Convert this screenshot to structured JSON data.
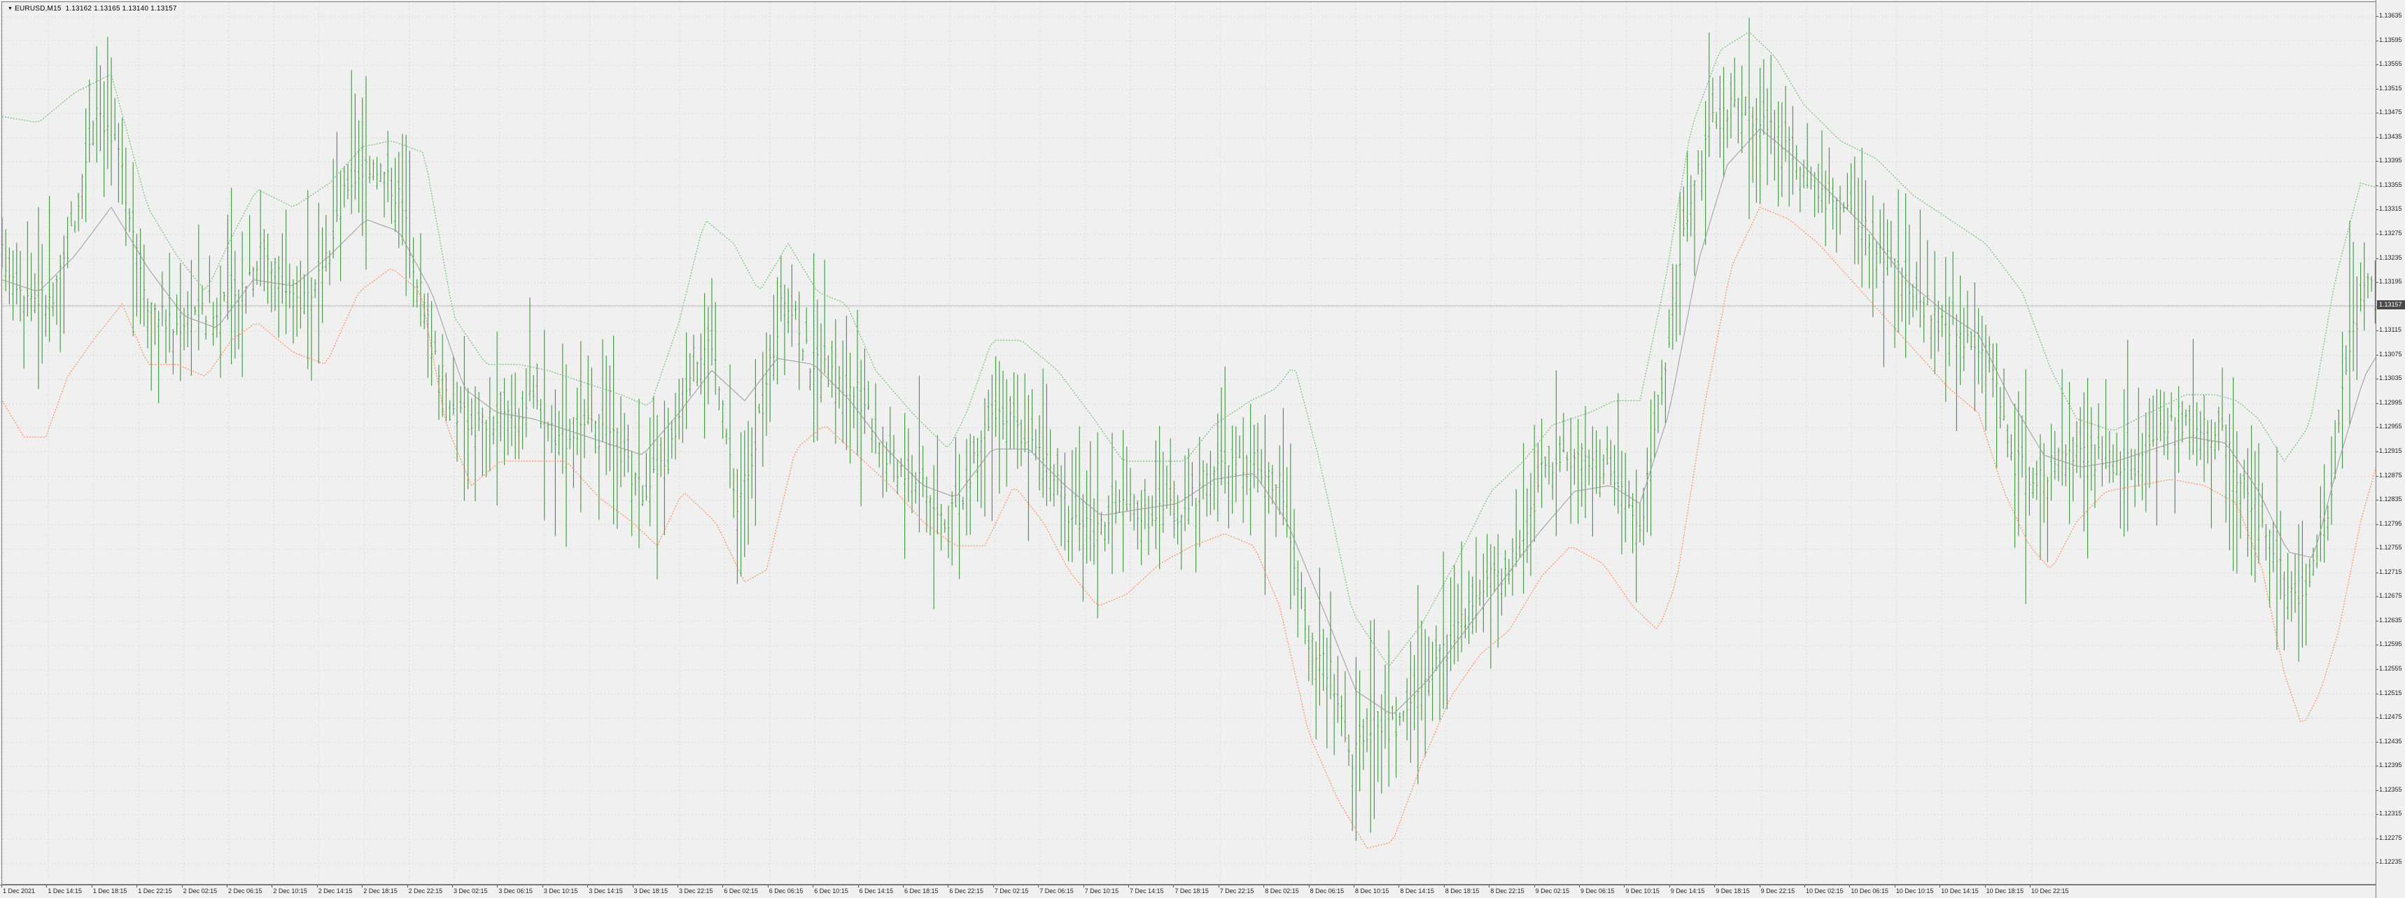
{
  "window": {
    "symbol_caption": "EURUSD,M15  1.13162 1.13165 1.13140 1.13157",
    "collapse_icon": "triangle-down-icon"
  },
  "colors": {
    "background": "#f0f0f0",
    "grid": "#d9d9d9",
    "bars": "#4c9a4c",
    "upper_band": "#6dbf6d",
    "middle_band": "#9a9a9a",
    "lower_band": "#ff8c5a",
    "current_price_line": "#bdbdbd",
    "current_price_label_bg": "#4a4a4a"
  },
  "price_axis": {
    "labels": [
      "1.13635",
      "1.13595",
      "1.13555",
      "1.13515",
      "1.13475",
      "1.13435",
      "1.13395",
      "1.13355",
      "1.13315",
      "1.13275",
      "1.13235",
      "1.13195",
      "1.13155",
      "1.13115",
      "1.13075",
      "1.13035",
      "1.12995",
      "1.12955",
      "1.12915",
      "1.12875",
      "1.12835",
      "1.12795",
      "1.12755",
      "1.12715",
      "1.12675",
      "1.12635",
      "1.12595",
      "1.12555",
      "1.12515",
      "1.12475",
      "1.12435",
      "1.12395",
      "1.12355",
      "1.12315",
      "1.12275",
      "1.12235"
    ],
    "current_price": "1.13157"
  },
  "time_axis": {
    "labels": [
      "1 Dec 2021",
      "1 Dec 14:15",
      "1 Dec 18:15",
      "1 Dec 22:15",
      "2 Dec 02:15",
      "2 Dec 06:15",
      "2 Dec 10:15",
      "2 Dec 14:15",
      "2 Dec 18:15",
      "2 Dec 22:15",
      "3 Dec 02:15",
      "3 Dec 06:15",
      "3 Dec 10:15",
      "3 Dec 14:15",
      "3 Dec 18:15",
      "3 Dec 22:15",
      "6 Dec 02:15",
      "6 Dec 06:15",
      "6 Dec 10:15",
      "6 Dec 14:15",
      "6 Dec 18:15",
      "6 Dec 22:15",
      "7 Dec 02:15",
      "7 Dec 06:15",
      "7 Dec 10:15",
      "7 Dec 14:15",
      "7 Dec 18:15",
      "7 Dec 22:15",
      "8 Dec 02:15",
      "8 Dec 06:15",
      "8 Dec 10:15",
      "8 Dec 14:15",
      "8 Dec 18:15",
      "8 Dec 22:15",
      "9 Dec 02:15",
      "9 Dec 06:15",
      "9 Dec 10:15",
      "9 Dec 14:15",
      "9 Dec 18:15",
      "9 Dec 22:15",
      "10 Dec 02:15",
      "10 Dec 06:15",
      "10 Dec 10:15",
      "10 Dec 14:15",
      "10 Dec 18:15",
      "10 Dec 22:15"
    ]
  },
  "chart_data": {
    "type": "ohlc",
    "symbol": "EURUSD",
    "timeframe": "M15",
    "ylim": [
      1.1221,
      1.1365
    ],
    "grid": true,
    "indicator": "bollinger-bands",
    "close_path": [
      [
        0,
        1.1324
      ],
      [
        14,
        1.1318
      ],
      [
        28,
        1.1316
      ],
      [
        40,
        1.133
      ],
      [
        52,
        1.135
      ],
      [
        66,
        1.1338
      ],
      [
        80,
        1.1317
      ],
      [
        94,
        1.1312
      ],
      [
        106,
        1.1315
      ],
      [
        118,
        1.1314
      ],
      [
        130,
        1.1318
      ],
      [
        144,
        1.1326
      ],
      [
        160,
        1.1316
      ],
      [
        176,
        1.132
      ],
      [
        190,
        1.1336
      ],
      [
        204,
        1.134
      ],
      [
        218,
        1.1334
      ],
      [
        234,
        1.1313
      ],
      [
        246,
        1.1299
      ],
      [
        260,
        1.1296
      ],
      [
        276,
        1.1297
      ],
      [
        292,
        1.13
      ],
      [
        306,
        1.1294
      ],
      [
        322,
        1.1295
      ],
      [
        338,
        1.1293
      ],
      [
        350,
        1.1285
      ],
      [
        366,
        1.129
      ],
      [
        378,
        1.1306
      ],
      [
        390,
        1.131
      ],
      [
        404,
        1.1282
      ],
      [
        416,
        1.1296
      ],
      [
        430,
        1.1318
      ],
      [
        444,
        1.1307
      ],
      [
        460,
        1.1303
      ],
      [
        474,
        1.13
      ],
      [
        488,
        1.129
      ],
      [
        504,
        1.1288
      ],
      [
        520,
        1.128
      ],
      [
        532,
        1.1287
      ],
      [
        544,
        1.13
      ],
      [
        558,
        1.1295
      ],
      [
        574,
        1.129
      ],
      [
        586,
        1.1282
      ],
      [
        600,
        1.1278
      ],
      [
        616,
        1.1283
      ],
      [
        632,
        1.1281
      ],
      [
        650,
        1.1282
      ],
      [
        664,
        1.1288
      ],
      [
        680,
        1.129
      ],
      [
        692,
        1.1289
      ],
      [
        704,
        1.1285
      ],
      [
        716,
        1.1262
      ],
      [
        730,
        1.1255
      ],
      [
        742,
        1.124
      ],
      [
        754,
        1.1248
      ],
      [
        766,
        1.1245
      ],
      [
        778,
        1.1252
      ],
      [
        790,
        1.1258
      ],
      [
        802,
        1.1263
      ],
      [
        818,
        1.127
      ],
      [
        834,
        1.1275
      ],
      [
        846,
        1.1288
      ],
      [
        858,
        1.1291
      ],
      [
        872,
        1.1291
      ],
      [
        888,
        1.1286
      ],
      [
        900,
        1.1278
      ],
      [
        912,
        1.1303
      ],
      [
        926,
        1.1332
      ],
      [
        940,
        1.1346
      ],
      [
        954,
        1.1349
      ],
      [
        966,
        1.1346
      ],
      [
        980,
        1.1343
      ],
      [
        994,
        1.1336
      ],
      [
        1006,
        1.1332
      ],
      [
        1020,
        1.133
      ],
      [
        1034,
        1.1324
      ],
      [
        1048,
        1.1318
      ],
      [
        1062,
        1.1314
      ],
      [
        1076,
        1.1311
      ],
      [
        1090,
        1.131
      ],
      [
        1106,
        1.129
      ],
      [
        1118,
        1.1287
      ],
      [
        1132,
        1.129
      ],
      [
        1144,
        1.1291
      ],
      [
        1158,
        1.129
      ],
      [
        1170,
        1.1289
      ],
      [
        1182,
        1.1293
      ],
      [
        1194,
        1.1297
      ],
      [
        1206,
        1.1296
      ],
      [
        1218,
        1.1295
      ],
      [
        1230,
        1.1287
      ],
      [
        1242,
        1.128
      ],
      [
        1254,
        1.127
      ],
      [
        1266,
        1.1268
      ],
      [
        1278,
        1.128
      ],
      [
        1290,
        1.131
      ],
      [
        1300,
        1.132
      ],
      [
        1312,
        1.1318
      ],
      [
        1322,
        1.1316
      ]
    ],
    "upper_band_path": [
      [
        0,
        1.1347
      ],
      [
        20,
        1.1346
      ],
      [
        40,
        1.1351
      ],
      [
        60,
        1.1354
      ],
      [
        80,
        1.1332
      ],
      [
        96,
        1.1324
      ],
      [
        112,
        1.1318
      ],
      [
        126,
        1.1327
      ],
      [
        140,
        1.1335
      ],
      [
        160,
        1.1332
      ],
      [
        180,
        1.1336
      ],
      [
        198,
        1.1342
      ],
      [
        214,
        1.1343
      ],
      [
        232,
        1.1341
      ],
      [
        248,
        1.1314
      ],
      [
        266,
        1.1306
      ],
      [
        284,
        1.1306
      ],
      [
        300,
        1.1305
      ],
      [
        320,
        1.1303
      ],
      [
        340,
        1.1301
      ],
      [
        356,
        1.1299
      ],
      [
        372,
        1.1313
      ],
      [
        386,
        1.133
      ],
      [
        402,
        1.1326
      ],
      [
        416,
        1.1318
      ],
      [
        432,
        1.1326
      ],
      [
        448,
        1.1318
      ],
      [
        464,
        1.1316
      ],
      [
        480,
        1.1305
      ],
      [
        500,
        1.1298
      ],
      [
        520,
        1.1292
      ],
      [
        530,
        1.1298
      ],
      [
        544,
        1.131
      ],
      [
        560,
        1.131
      ],
      [
        580,
        1.1305
      ],
      [
        600,
        1.1297
      ],
      [
        616,
        1.129
      ],
      [
        634,
        1.129
      ],
      [
        650,
        1.129
      ],
      [
        666,
        1.1296
      ],
      [
        686,
        1.13
      ],
      [
        700,
        1.1302
      ],
      [
        710,
        1.1306
      ],
      [
        724,
        1.129
      ],
      [
        742,
        1.1265
      ],
      [
        762,
        1.1256
      ],
      [
        780,
        1.1263
      ],
      [
        800,
        1.1274
      ],
      [
        818,
        1.1285
      ],
      [
        836,
        1.129
      ],
      [
        852,
        1.1296
      ],
      [
        872,
        1.1298
      ],
      [
        886,
        1.13
      ],
      [
        900,
        1.13
      ],
      [
        914,
        1.132
      ],
      [
        928,
        1.1345
      ],
      [
        944,
        1.1358
      ],
      [
        960,
        1.1361
      ],
      [
        974,
        1.1357
      ],
      [
        990,
        1.1349
      ],
      [
        1010,
        1.1343
      ],
      [
        1030,
        1.134
      ],
      [
        1050,
        1.1334
      ],
      [
        1070,
        1.133
      ],
      [
        1090,
        1.1326
      ],
      [
        1110,
        1.1318
      ],
      [
        1126,
        1.1305
      ],
      [
        1140,
        1.1297
      ],
      [
        1160,
        1.1295
      ],
      [
        1180,
        1.1298
      ],
      [
        1200,
        1.1301
      ],
      [
        1216,
        1.1301
      ],
      [
        1228,
        1.13
      ],
      [
        1240,
        1.1297
      ],
      [
        1254,
        1.129
      ],
      [
        1268,
        1.1296
      ],
      [
        1282,
        1.132
      ],
      [
        1296,
        1.1336
      ],
      [
        1308,
        1.1335
      ],
      [
        1318,
        1.1326
      ],
      [
        1326,
        1.1321
      ]
    ],
    "middle_band_path": [
      [
        0,
        1.132
      ],
      [
        20,
        1.1318
      ],
      [
        40,
        1.1324
      ],
      [
        60,
        1.1332
      ],
      [
        80,
        1.1322
      ],
      [
        100,
        1.1314
      ],
      [
        118,
        1.1312
      ],
      [
        138,
        1.132
      ],
      [
        160,
        1.1319
      ],
      [
        180,
        1.1324
      ],
      [
        200,
        1.133
      ],
      [
        218,
        1.1328
      ],
      [
        236,
        1.1318
      ],
      [
        254,
        1.1302
      ],
      [
        272,
        1.1298
      ],
      [
        292,
        1.1297
      ],
      [
        312,
        1.1295
      ],
      [
        332,
        1.1293
      ],
      [
        352,
        1.1291
      ],
      [
        372,
        1.1298
      ],
      [
        390,
        1.1305
      ],
      [
        408,
        1.13
      ],
      [
        426,
        1.1307
      ],
      [
        446,
        1.1306
      ],
      [
        466,
        1.13
      ],
      [
        486,
        1.1292
      ],
      [
        506,
        1.1286
      ],
      [
        524,
        1.1284
      ],
      [
        544,
        1.1292
      ],
      [
        564,
        1.1292
      ],
      [
        584,
        1.1286
      ],
      [
        604,
        1.1281
      ],
      [
        624,
        1.1282
      ],
      [
        646,
        1.1283
      ],
      [
        666,
        1.1287
      ],
      [
        688,
        1.1288
      ],
      [
        706,
        1.128
      ],
      [
        724,
        1.1267
      ],
      [
        744,
        1.1252
      ],
      [
        764,
        1.1248
      ],
      [
        784,
        1.1254
      ],
      [
        804,
        1.1262
      ],
      [
        824,
        1.127
      ],
      [
        844,
        1.1278
      ],
      [
        864,
        1.1285
      ],
      [
        884,
        1.1286
      ],
      [
        900,
        1.1283
      ],
      [
        916,
        1.1298
      ],
      [
        932,
        1.1323
      ],
      [
        948,
        1.1339
      ],
      [
        966,
        1.1345
      ],
      [
        986,
        1.134
      ],
      [
        1006,
        1.1334
      ],
      [
        1026,
        1.1328
      ],
      [
        1046,
        1.132
      ],
      [
        1066,
        1.1315
      ],
      [
        1086,
        1.1311
      ],
      [
        1104,
        1.13
      ],
      [
        1122,
        1.1291
      ],
      [
        1142,
        1.1289
      ],
      [
        1162,
        1.129
      ],
      [
        1182,
        1.1292
      ],
      [
        1202,
        1.1294
      ],
      [
        1222,
        1.1293
      ],
      [
        1240,
        1.1285
      ],
      [
        1256,
        1.1275
      ],
      [
        1270,
        1.1274
      ],
      [
        1284,
        1.129
      ],
      [
        1298,
        1.1304
      ],
      [
        1312,
        1.1311
      ],
      [
        1326,
        1.1313
      ]
    ],
    "lower_band_path": [
      [
        0,
        1.13
      ],
      [
        12,
        1.1294
      ],
      [
        24,
        1.1294
      ],
      [
        36,
        1.1304
      ],
      [
        50,
        1.131
      ],
      [
        66,
        1.1316
      ],
      [
        80,
        1.1306
      ],
      [
        96,
        1.1306
      ],
      [
        112,
        1.1304
      ],
      [
        126,
        1.131
      ],
      [
        140,
        1.1313
      ],
      [
        160,
        1.1308
      ],
      [
        178,
        1.1306
      ],
      [
        196,
        1.1318
      ],
      [
        214,
        1.1322
      ],
      [
        230,
        1.1318
      ],
      [
        244,
        1.1296
      ],
      [
        258,
        1.1286
      ],
      [
        274,
        1.129
      ],
      [
        292,
        1.129
      ],
      [
        310,
        1.129
      ],
      [
        328,
        1.1284
      ],
      [
        346,
        1.128
      ],
      [
        360,
        1.1276
      ],
      [
        374,
        1.1285
      ],
      [
        392,
        1.128
      ],
      [
        408,
        1.127
      ],
      [
        420,
        1.1272
      ],
      [
        436,
        1.1292
      ],
      [
        452,
        1.1296
      ],
      [
        470,
        1.1291
      ],
      [
        488,
        1.1286
      ],
      [
        506,
        1.128
      ],
      [
        524,
        1.1276
      ],
      [
        540,
        1.1276
      ],
      [
        556,
        1.1286
      ],
      [
        572,
        1.128
      ],
      [
        586,
        1.1272
      ],
      [
        602,
        1.1266
      ],
      [
        618,
        1.1268
      ],
      [
        636,
        1.1273
      ],
      [
        654,
        1.1276
      ],
      [
        672,
        1.1278
      ],
      [
        688,
        1.1276
      ],
      [
        702,
        1.1266
      ],
      [
        718,
        1.1245
      ],
      [
        734,
        1.1234
      ],
      [
        750,
        1.1226
      ],
      [
        764,
        1.1227
      ],
      [
        780,
        1.124
      ],
      [
        796,
        1.1251
      ],
      [
        812,
        1.1258
      ],
      [
        828,
        1.1262
      ],
      [
        846,
        1.1271
      ],
      [
        862,
        1.1276
      ],
      [
        880,
        1.1273
      ],
      [
        896,
        1.1266
      ],
      [
        910,
        1.1262
      ],
      [
        920,
        1.127
      ],
      [
        936,
        1.13
      ],
      [
        950,
        1.1322
      ],
      [
        966,
        1.1332
      ],
      [
        982,
        1.133
      ],
      [
        998,
        1.1326
      ],
      [
        1016,
        1.132
      ],
      [
        1034,
        1.1314
      ],
      [
        1052,
        1.1308
      ],
      [
        1070,
        1.1302
      ],
      [
        1086,
        1.1298
      ],
      [
        1100,
        1.1285
      ],
      [
        1114,
        1.1276
      ],
      [
        1126,
        1.1272
      ],
      [
        1140,
        1.128
      ],
      [
        1156,
        1.1285
      ],
      [
        1174,
        1.1286
      ],
      [
        1192,
        1.1287
      ],
      [
        1210,
        1.1286
      ],
      [
        1228,
        1.1283
      ],
      [
        1242,
        1.1272
      ],
      [
        1254,
        1.1255
      ],
      [
        1264,
        1.1246
      ],
      [
        1274,
        1.1252
      ],
      [
        1284,
        1.1262
      ],
      [
        1296,
        1.128
      ],
      [
        1310,
        1.1295
      ],
      [
        1322,
        1.1299
      ],
      [
        1326,
        1.13
      ]
    ]
  }
}
